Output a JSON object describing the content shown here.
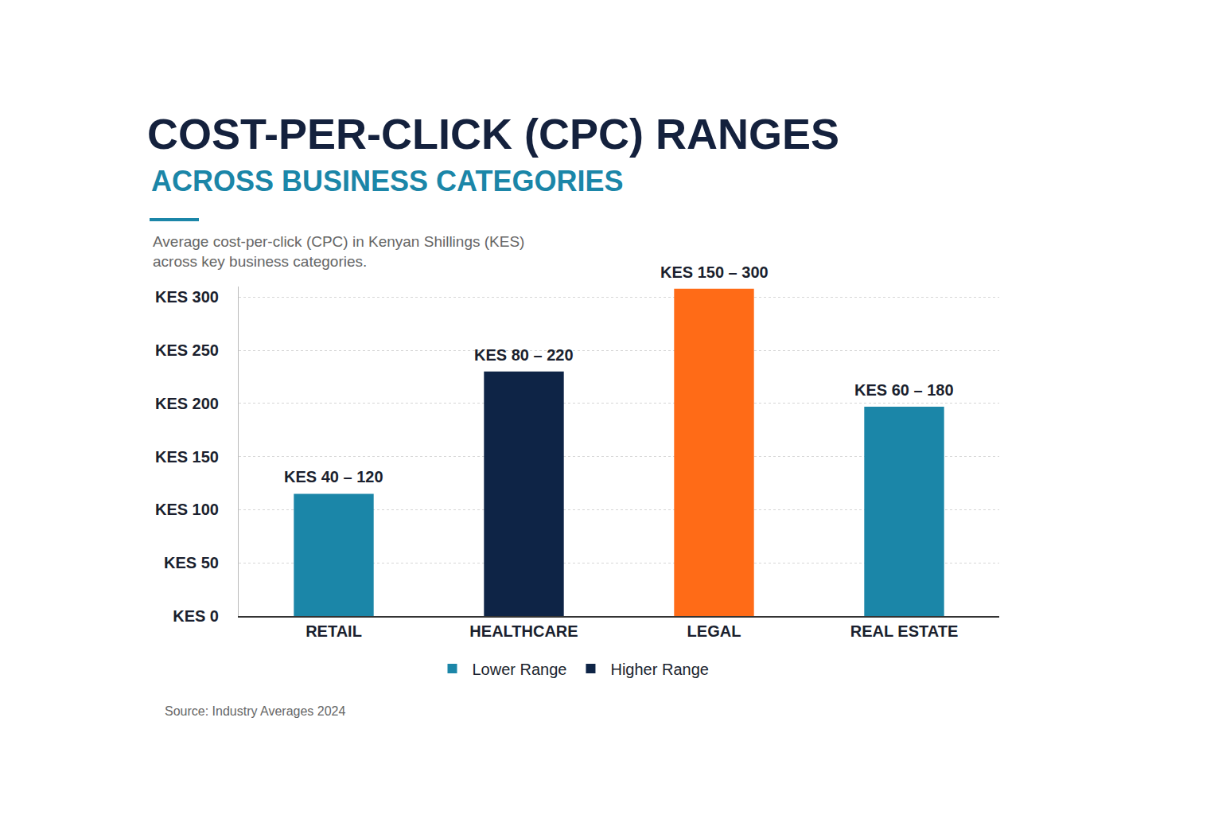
{
  "chart_data": {
    "type": "bar",
    "title": "COST-PER-CLICK (CPC) RANGES",
    "subtitle": "ACROSS BUSINESS CATEGORIES",
    "description": [
      "Average cost-per-click (CPC) in Kenyan Shillings (KES)",
      "across key business categories."
    ],
    "categories": [
      "RETAIL",
      "HEALTHCARE",
      "LEGAL",
      "REAL ESTATE"
    ],
    "series": [
      {
        "name": "Lower Range",
        "color": "#1b86a8",
        "values": [
          115,
          null,
          null,
          197
        ]
      },
      {
        "name": "Higher Range",
        "color": "#0e2446",
        "values": [
          null,
          230,
          null,
          null
        ]
      },
      {
        "color": "#ff6b17",
        "values": [
          null,
          null,
          308,
          null
        ]
      }
    ],
    "annotations": [
      {
        "category": "RETAIL",
        "text": "KES 40 – 120"
      },
      {
        "category": "HEALTHCARE",
        "text": "KES 80 – 220"
      },
      {
        "category": "LEGAL",
        "text": "KES 150 – 300"
      },
      {
        "category": "REAL ESTATE",
        "text": "KES 60 – 180"
      }
    ],
    "ylim": [
      0,
      310
    ],
    "yticks": [
      {
        "value": 0,
        "label": "KES 0"
      },
      {
        "value": 50,
        "label": "KES 50"
      },
      {
        "value": 100,
        "label": "KES 100"
      },
      {
        "value": 150,
        "label": "KES 150"
      },
      {
        "value": 200,
        "label": "KES 200"
      },
      {
        "value": 250,
        "label": "KES 250"
      },
      {
        "value": 300,
        "label": "KES 300"
      }
    ],
    "grid": true,
    "legend": "bottom",
    "source": "Source: Industry Averages 2024"
  }
}
